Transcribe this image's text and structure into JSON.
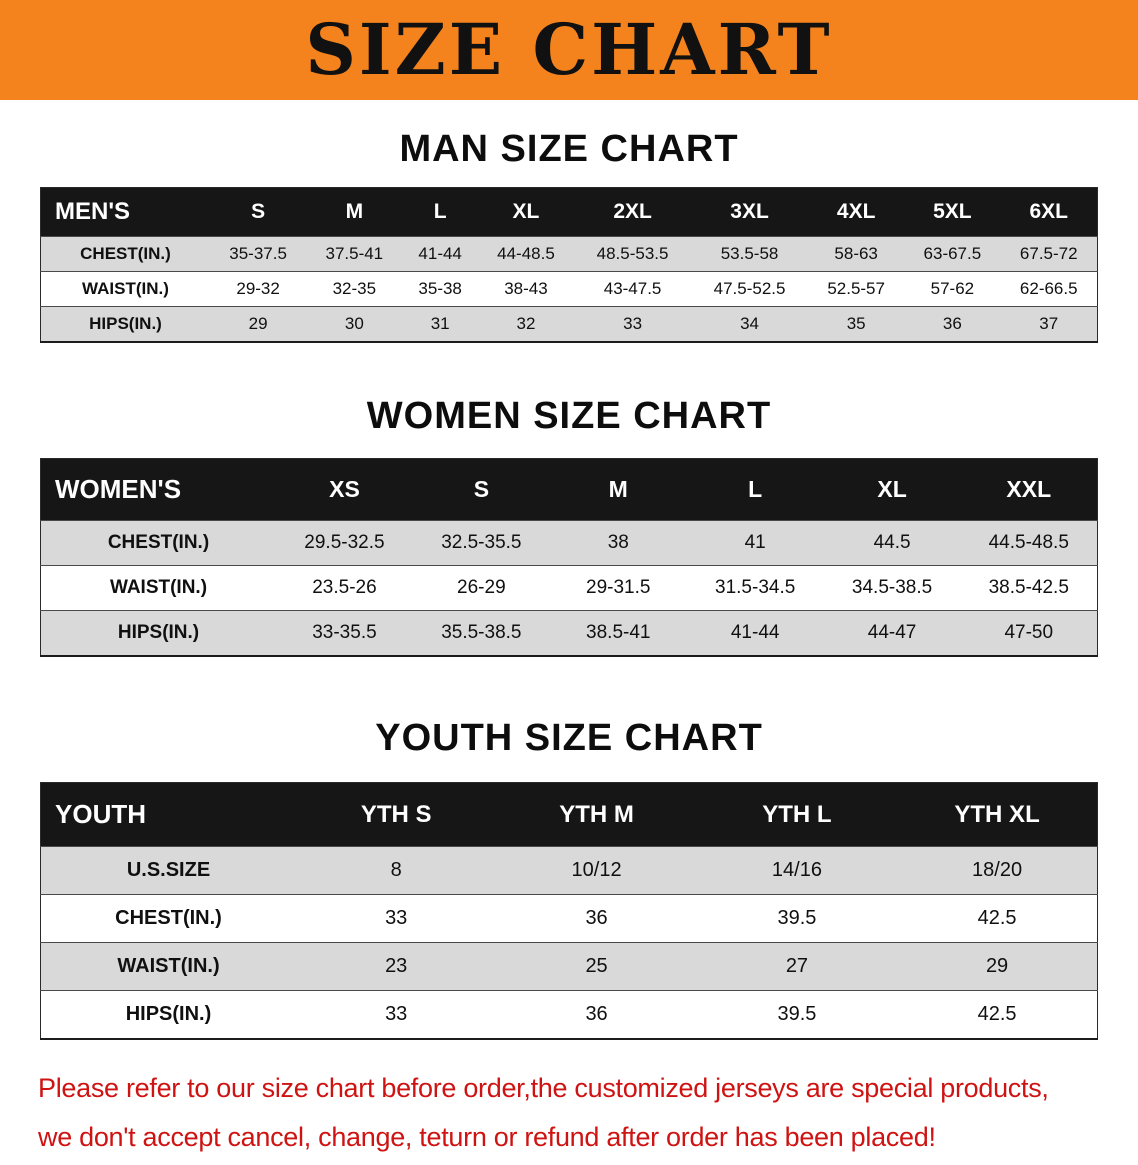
{
  "banner": {
    "title": "SIZE CHART"
  },
  "sections": {
    "men": {
      "heading": "MAN SIZE CHART",
      "table": {
        "header": [
          "MEN'S",
          "S",
          "M",
          "L",
          "XL",
          "2XL",
          "3XL",
          "4XL",
          "5XL",
          "6XL"
        ],
        "rows": [
          [
            "CHEST(IN.)",
            "35-37.5",
            "37.5-41",
            "41-44",
            "44-48.5",
            "48.5-53.5",
            "53.5-58",
            "58-63",
            "63-67.5",
            "67.5-72"
          ],
          [
            "WAIST(IN.)",
            "29-32",
            "32-35",
            "35-38",
            "38-43",
            "43-47.5",
            "47.5-52.5",
            "52.5-57",
            "57-62",
            "62-66.5"
          ],
          [
            "HIPS(IN.)",
            "29",
            "30",
            "31",
            "32",
            "33",
            "34",
            "35",
            "36",
            "37"
          ]
        ]
      }
    },
    "women": {
      "heading": "WOMEN SIZE CHART",
      "table": {
        "header": [
          "WOMEN'S",
          "XS",
          "S",
          "M",
          "L",
          "XL",
          "XXL"
        ],
        "rows": [
          [
            "CHEST(IN.)",
            "29.5-32.5",
            "32.5-35.5",
            "38",
            "41",
            "44.5",
            "44.5-48.5"
          ],
          [
            "WAIST(IN.)",
            "23.5-26",
            "26-29",
            "29-31.5",
            "31.5-34.5",
            "34.5-38.5",
            "38.5-42.5"
          ],
          [
            "HIPS(IN.)",
            "33-35.5",
            "35.5-38.5",
            "38.5-41",
            "41-44",
            "44-47",
            "47-50"
          ]
        ]
      }
    },
    "youth": {
      "heading": "YOUTH SIZE CHART",
      "table": {
        "header": [
          "YOUTH",
          "YTH S",
          "YTH M",
          "YTH L",
          "YTH XL"
        ],
        "rows": [
          [
            "U.S.SIZE",
            "8",
            "10/12",
            "14/16",
            "18/20"
          ],
          [
            "CHEST(IN.)",
            "33",
            "36",
            "39.5",
            "42.5"
          ],
          [
            "WAIST(IN.)",
            "23",
            "25",
            "27",
            "29"
          ],
          [
            "HIPS(IN.)",
            "33",
            "36",
            "39.5",
            "42.5"
          ]
        ]
      }
    }
  },
  "disclaimer": {
    "line1": "Please refer to our size chart before order,the customized jerseys are special products,",
    "line2": "we don't accept cancel, change, teturn or refund after order has been placed!"
  },
  "colors": {
    "banner_bg": "#F5831D",
    "banner_text": "#111111",
    "table_header_bg": "#161616",
    "table_header_text": "#FFFFFF",
    "row_alt_bg": "#D9D9D9",
    "disclaimer_text": "#CE1312"
  }
}
